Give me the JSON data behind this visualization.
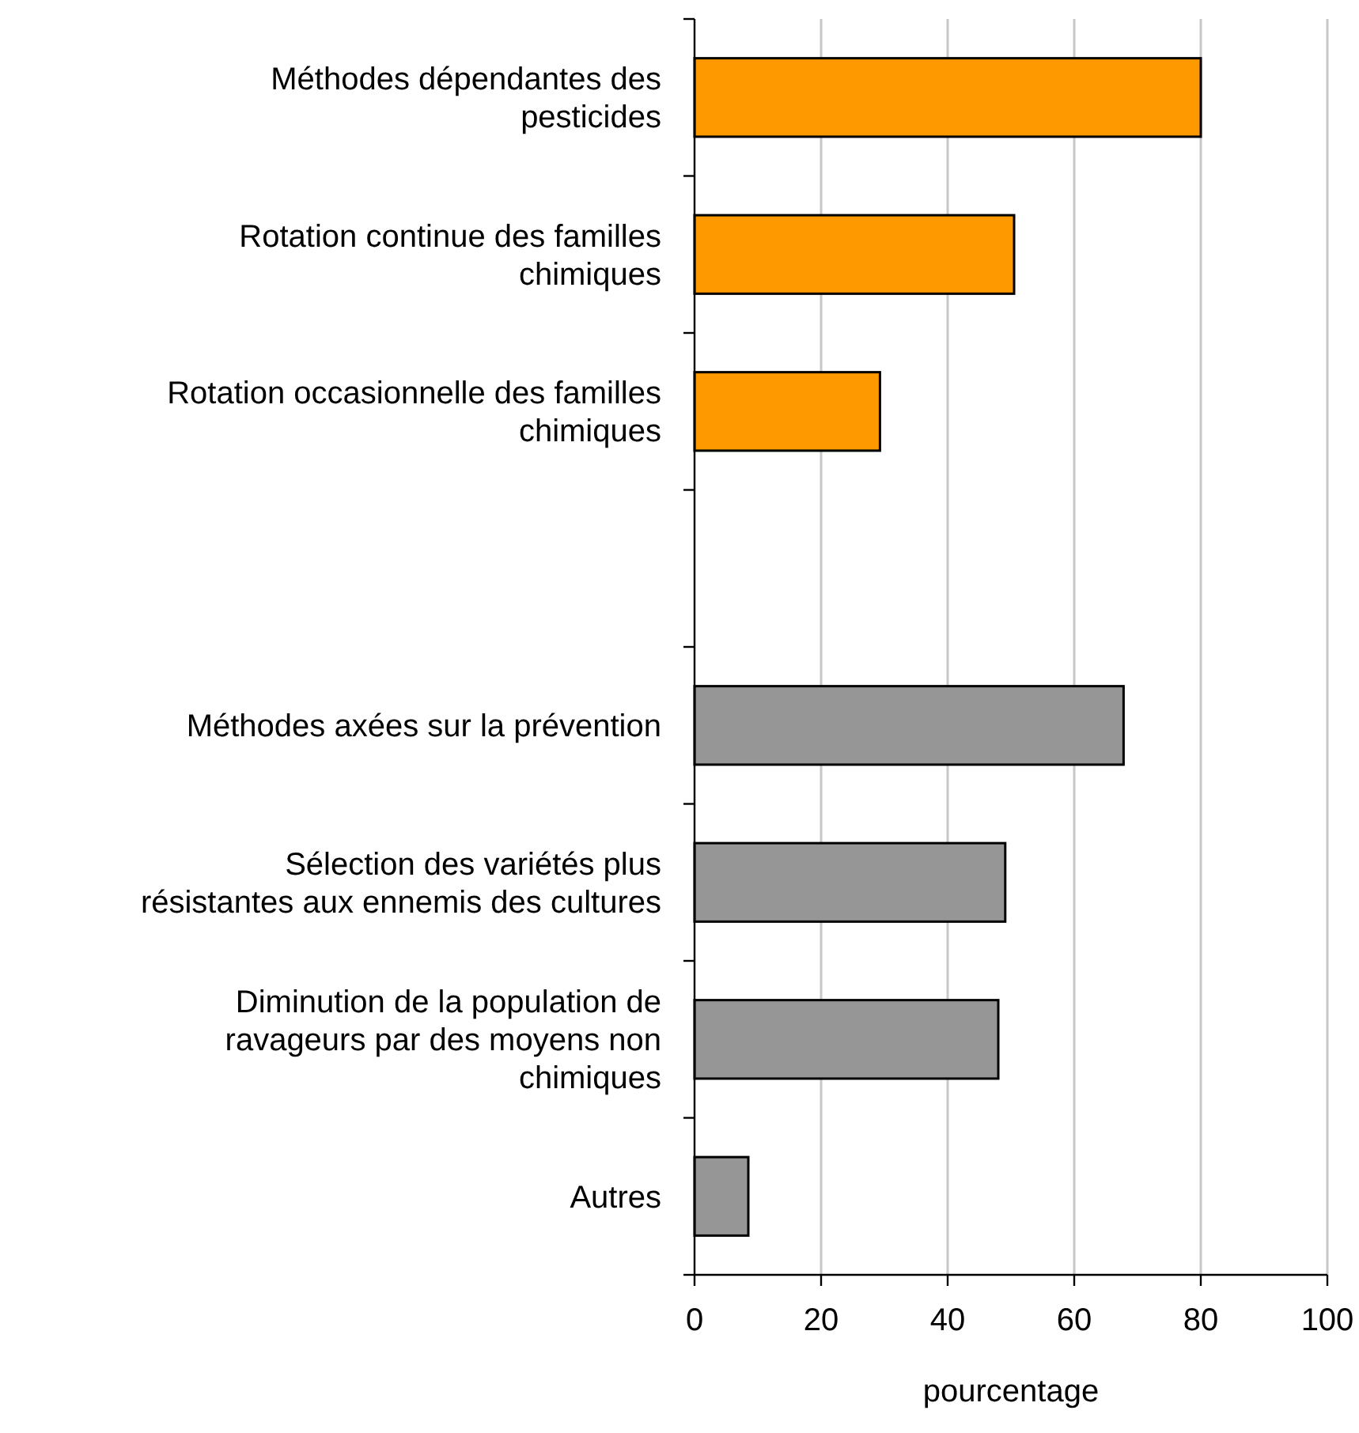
{
  "chart_data": {
    "type": "bar",
    "orientation": "horizontal",
    "xlabel": "pourcentage",
    "categories": [
      "Méthodes dépendantes des pesticides",
      "Rotation continue des familles chimiques",
      "Rotation occasionnelle des familles chimiques",
      null,
      "Méthodes axées sur la prévention",
      "Sélection des variétés plus résistantes aux ennemis des cultures",
      "Diminution de la population de ravageurs par des moyens non chimiques",
      "Autres"
    ],
    "values": [
      80,
      50.5,
      29.3,
      null,
      67.8,
      49.1,
      48,
      8.5
    ],
    "colors": [
      "#ff9900",
      "#ff9900",
      "#ff9900",
      null,
      "#969696",
      "#969696",
      "#969696",
      "#969696"
    ],
    "xlim": [
      0,
      100
    ],
    "xticks": [
      0,
      20,
      40,
      60,
      80,
      100
    ],
    "grid": "x"
  }
}
